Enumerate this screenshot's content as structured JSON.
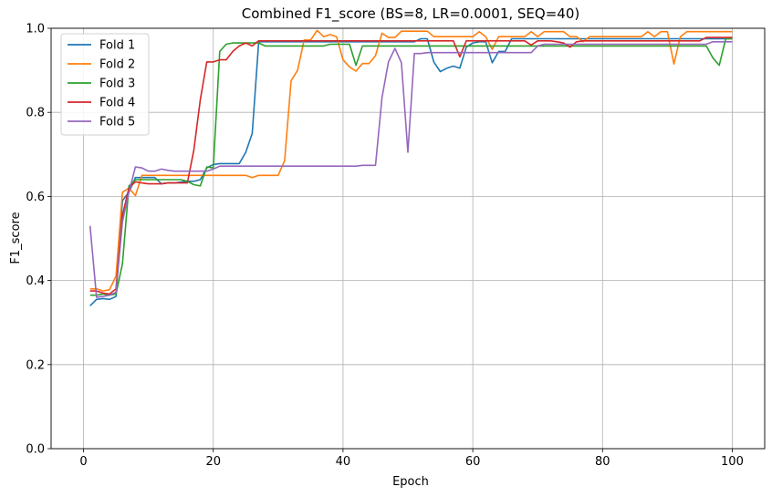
{
  "chart_data": {
    "type": "line",
    "title": "Combined F1_score (BS=8, LR=0.0001, SEQ=40)",
    "xlabel": "Epoch",
    "ylabel": "F1_score",
    "xlim": [
      -5,
      105
    ],
    "ylim": [
      0,
      1.0
    ],
    "xticks": [
      0,
      20,
      40,
      60,
      80,
      100
    ],
    "yticks": [
      0.0,
      0.2,
      0.4,
      0.6,
      0.8,
      1.0
    ],
    "xtick_labels": [
      "0",
      "20",
      "40",
      "60",
      "80",
      "100"
    ],
    "ytick_labels": [
      "0.0",
      "0.2",
      "0.4",
      "0.6",
      "0.8",
      "1.0"
    ],
    "grid": true,
    "legend_position": "top-left",
    "x": [
      1,
      2,
      3,
      4,
      5,
      6,
      7,
      8,
      9,
      10,
      11,
      12,
      13,
      14,
      15,
      16,
      17,
      18,
      19,
      20,
      21,
      22,
      23,
      24,
      25,
      26,
      27,
      28,
      29,
      30,
      31,
      32,
      33,
      34,
      35,
      36,
      37,
      38,
      39,
      40,
      41,
      42,
      43,
      44,
      45,
      46,
      47,
      48,
      49,
      50,
      51,
      52,
      53,
      54,
      55,
      56,
      57,
      58,
      59,
      60,
      61,
      62,
      63,
      64,
      65,
      66,
      67,
      68,
      69,
      70,
      71,
      72,
      73,
      74,
      75,
      76,
      77,
      78,
      79,
      80,
      81,
      82,
      83,
      84,
      85,
      86,
      87,
      88,
      89,
      90,
      91,
      92,
      93,
      94,
      95,
      96,
      97,
      98,
      99,
      100
    ],
    "series": [
      {
        "name": "Fold 1",
        "color": "#1f77b4",
        "values": [
          0.34,
          0.355,
          0.357,
          0.355,
          0.362,
          0.59,
          0.61,
          0.645,
          0.645,
          0.645,
          0.645,
          0.63,
          0.632,
          0.632,
          0.634,
          0.636,
          0.636,
          0.64,
          0.668,
          0.676,
          0.678,
          0.678,
          0.678,
          0.678,
          0.705,
          0.75,
          0.968,
          0.968,
          0.968,
          0.968,
          0.968,
          0.968,
          0.968,
          0.968,
          0.968,
          0.968,
          0.968,
          0.968,
          0.968,
          0.968,
          0.968,
          0.968,
          0.968,
          0.968,
          0.968,
          0.968,
          0.968,
          0.968,
          0.968,
          0.968,
          0.968,
          0.975,
          0.975,
          0.92,
          0.897,
          0.905,
          0.91,
          0.905,
          0.955,
          0.965,
          0.968,
          0.968,
          0.918,
          0.945,
          0.945,
          0.975,
          0.975,
          0.975,
          0.975,
          0.975,
          0.975,
          0.975,
          0.975,
          0.975,
          0.975,
          0.975,
          0.975,
          0.975,
          0.975,
          0.975,
          0.975,
          0.975,
          0.975,
          0.975,
          0.975,
          0.975,
          0.975,
          0.975,
          0.975,
          0.975,
          0.975,
          0.975,
          0.975,
          0.975,
          0.975,
          0.975,
          0.975,
          0.975,
          0.975,
          0.975
        ]
      },
      {
        "name": "Fold 2",
        "color": "#ff7f0e",
        "values": [
          0.38,
          0.38,
          0.375,
          0.378,
          0.41,
          0.61,
          0.62,
          0.602,
          0.65,
          0.65,
          0.65,
          0.65,
          0.65,
          0.65,
          0.65,
          0.65,
          0.65,
          0.65,
          0.65,
          0.65,
          0.65,
          0.65,
          0.65,
          0.65,
          0.65,
          0.645,
          0.65,
          0.65,
          0.65,
          0.65,
          0.685,
          0.875,
          0.9,
          0.972,
          0.972,
          0.995,
          0.98,
          0.985,
          0.98,
          0.925,
          0.908,
          0.898,
          0.916,
          0.916,
          0.935,
          0.988,
          0.978,
          0.978,
          0.993,
          0.993,
          0.993,
          0.993,
          0.993,
          0.98,
          0.98,
          0.98,
          0.98,
          0.98,
          0.98,
          0.98,
          0.992,
          0.98,
          0.95,
          0.98,
          0.98,
          0.98,
          0.98,
          0.98,
          0.992,
          0.98,
          0.992,
          0.992,
          0.992,
          0.992,
          0.98,
          0.98,
          0.968,
          0.98,
          0.98,
          0.98,
          0.98,
          0.98,
          0.98,
          0.98,
          0.98,
          0.98,
          0.992,
          0.98,
          0.992,
          0.992,
          0.915,
          0.98,
          0.992,
          0.992,
          0.992,
          0.992,
          0.992,
          0.992,
          0.992,
          0.992
        ]
      },
      {
        "name": "Fold 3",
        "color": "#2ca02c",
        "values": [
          0.365,
          0.365,
          0.368,
          0.365,
          0.368,
          0.44,
          0.625,
          0.64,
          0.64,
          0.64,
          0.64,
          0.64,
          0.64,
          0.64,
          0.64,
          0.636,
          0.628,
          0.625,
          0.67,
          0.668,
          0.945,
          0.962,
          0.965,
          0.965,
          0.965,
          0.965,
          0.965,
          0.958,
          0.958,
          0.958,
          0.958,
          0.958,
          0.958,
          0.958,
          0.958,
          0.958,
          0.958,
          0.962,
          0.962,
          0.962,
          0.962,
          0.912,
          0.958,
          0.958,
          0.958,
          0.958,
          0.958,
          0.958,
          0.958,
          0.958,
          0.958,
          0.958,
          0.958,
          0.958,
          0.958,
          0.958,
          0.958,
          0.958,
          0.958,
          0.958,
          0.958,
          0.958,
          0.958,
          0.958,
          0.958,
          0.958,
          0.958,
          0.958,
          0.958,
          0.958,
          0.958,
          0.958,
          0.958,
          0.958,
          0.958,
          0.958,
          0.958,
          0.958,
          0.958,
          0.958,
          0.958,
          0.958,
          0.958,
          0.958,
          0.958,
          0.958,
          0.958,
          0.958,
          0.958,
          0.958,
          0.958,
          0.958,
          0.958,
          0.958,
          0.958,
          0.958,
          0.93,
          0.912,
          0.975,
          0.975
        ]
      },
      {
        "name": "Fold 4",
        "color": "#d62728",
        "values": [
          0.375,
          0.375,
          0.37,
          0.368,
          0.38,
          0.555,
          0.62,
          0.635,
          0.632,
          0.63,
          0.63,
          0.63,
          0.632,
          0.632,
          0.632,
          0.632,
          0.71,
          0.83,
          0.92,
          0.92,
          0.925,
          0.925,
          0.945,
          0.958,
          0.965,
          0.958,
          0.97,
          0.97,
          0.97,
          0.97,
          0.97,
          0.97,
          0.97,
          0.97,
          0.97,
          0.97,
          0.97,
          0.97,
          0.97,
          0.97,
          0.97,
          0.97,
          0.97,
          0.97,
          0.97,
          0.97,
          0.97,
          0.97,
          0.97,
          0.97,
          0.97,
          0.97,
          0.97,
          0.97,
          0.97,
          0.97,
          0.97,
          0.932,
          0.97,
          0.97,
          0.97,
          0.97,
          0.97,
          0.97,
          0.97,
          0.97,
          0.97,
          0.97,
          0.96,
          0.97,
          0.97,
          0.97,
          0.968,
          0.965,
          0.955,
          0.968,
          0.97,
          0.97,
          0.97,
          0.97,
          0.97,
          0.97,
          0.97,
          0.97,
          0.97,
          0.97,
          0.97,
          0.97,
          0.97,
          0.97,
          0.97,
          0.97,
          0.97,
          0.97,
          0.97,
          0.978,
          0.978,
          0.978,
          0.978,
          0.978
        ]
      },
      {
        "name": "Fold 5",
        "color": "#9467bd",
        "values": [
          0.53,
          0.36,
          0.362,
          0.365,
          0.372,
          0.54,
          0.61,
          0.67,
          0.668,
          0.66,
          0.66,
          0.665,
          0.662,
          0.66,
          0.66,
          0.66,
          0.66,
          0.66,
          0.66,
          0.665,
          0.672,
          0.672,
          0.672,
          0.672,
          0.672,
          0.672,
          0.672,
          0.672,
          0.672,
          0.672,
          0.672,
          0.672,
          0.672,
          0.672,
          0.672,
          0.672,
          0.672,
          0.672,
          0.672,
          0.672,
          0.672,
          0.672,
          0.674,
          0.674,
          0.674,
          0.835,
          0.92,
          0.952,
          0.918,
          0.705,
          0.94,
          0.94,
          0.942,
          0.942,
          0.942,
          0.942,
          0.942,
          0.942,
          0.942,
          0.942,
          0.942,
          0.942,
          0.942,
          0.942,
          0.942,
          0.942,
          0.942,
          0.942,
          0.942,
          0.958,
          0.962,
          0.962,
          0.962,
          0.962,
          0.962,
          0.962,
          0.962,
          0.962,
          0.962,
          0.962,
          0.962,
          0.962,
          0.962,
          0.962,
          0.962,
          0.962,
          0.962,
          0.962,
          0.962,
          0.962,
          0.962,
          0.962,
          0.962,
          0.962,
          0.962,
          0.962,
          0.968,
          0.968,
          0.968,
          0.968
        ]
      }
    ]
  }
}
